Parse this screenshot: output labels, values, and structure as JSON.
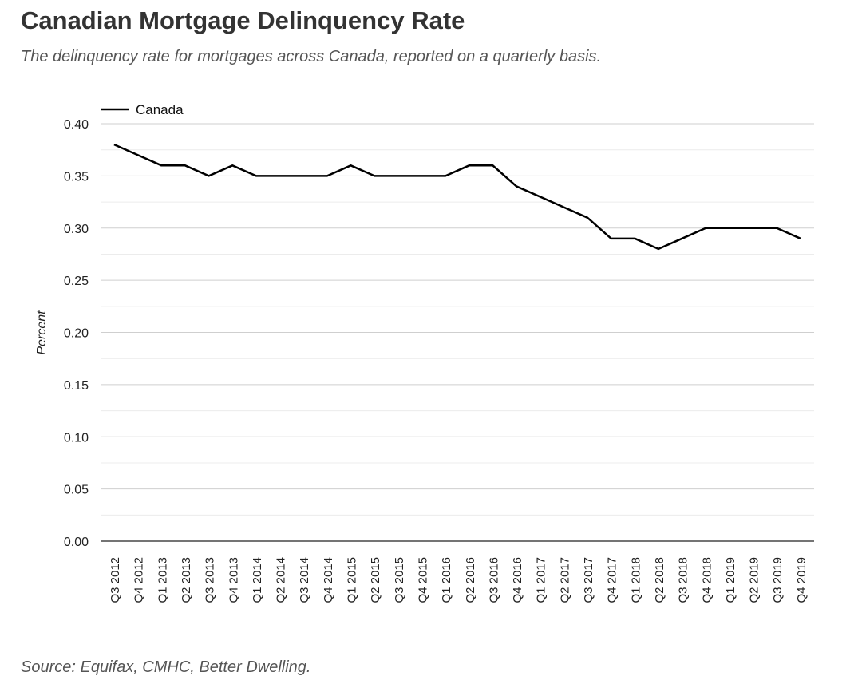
{
  "header": {
    "title": "Canadian Mortgage Delinquency Rate",
    "subtitle": "The delinquency rate for mortgages across Canada, reported on a quarterly basis."
  },
  "footer": {
    "source": "Source: Equifax, CMHC, Better Dwelling."
  },
  "chart_data": {
    "type": "line",
    "title": "Canadian Mortgage Delinquency Rate",
    "xlabel": "",
    "ylabel": "Percent",
    "ylim": [
      0,
      0.4
    ],
    "yticks": [
      "0.00",
      "0.05",
      "0.10",
      "0.15",
      "0.20",
      "0.25",
      "0.30",
      "0.35",
      "0.40"
    ],
    "grid": true,
    "legend_position": "top-left",
    "line_color": "#000000",
    "categories": [
      "Q3 2012",
      "Q4 2012",
      "Q1 2013",
      "Q2 2013",
      "Q3 2013",
      "Q4 2013",
      "Q1 2014",
      "Q2 2014",
      "Q3 2014",
      "Q4 2014",
      "Q1 2015",
      "Q2 2015",
      "Q3 2015",
      "Q4 2015",
      "Q1 2016",
      "Q2 2016",
      "Q3 2016",
      "Q4 2016",
      "Q1 2017",
      "Q2 2017",
      "Q3 2017",
      "Q4 2017",
      "Q1 2018",
      "Q2 2018",
      "Q3 2018",
      "Q4 2018",
      "Q1 2019",
      "Q2 2019",
      "Q3 2019",
      "Q4 2019"
    ],
    "series": [
      {
        "name": "Canada",
        "values": [
          0.38,
          0.37,
          0.36,
          0.36,
          0.35,
          0.36,
          0.35,
          0.35,
          0.35,
          0.35,
          0.36,
          0.35,
          0.35,
          0.35,
          0.35,
          0.36,
          0.36,
          0.34,
          0.33,
          0.32,
          0.31,
          0.29,
          0.29,
          0.28,
          0.29,
          0.3,
          0.3,
          0.3,
          0.3,
          0.29
        ]
      }
    ]
  }
}
